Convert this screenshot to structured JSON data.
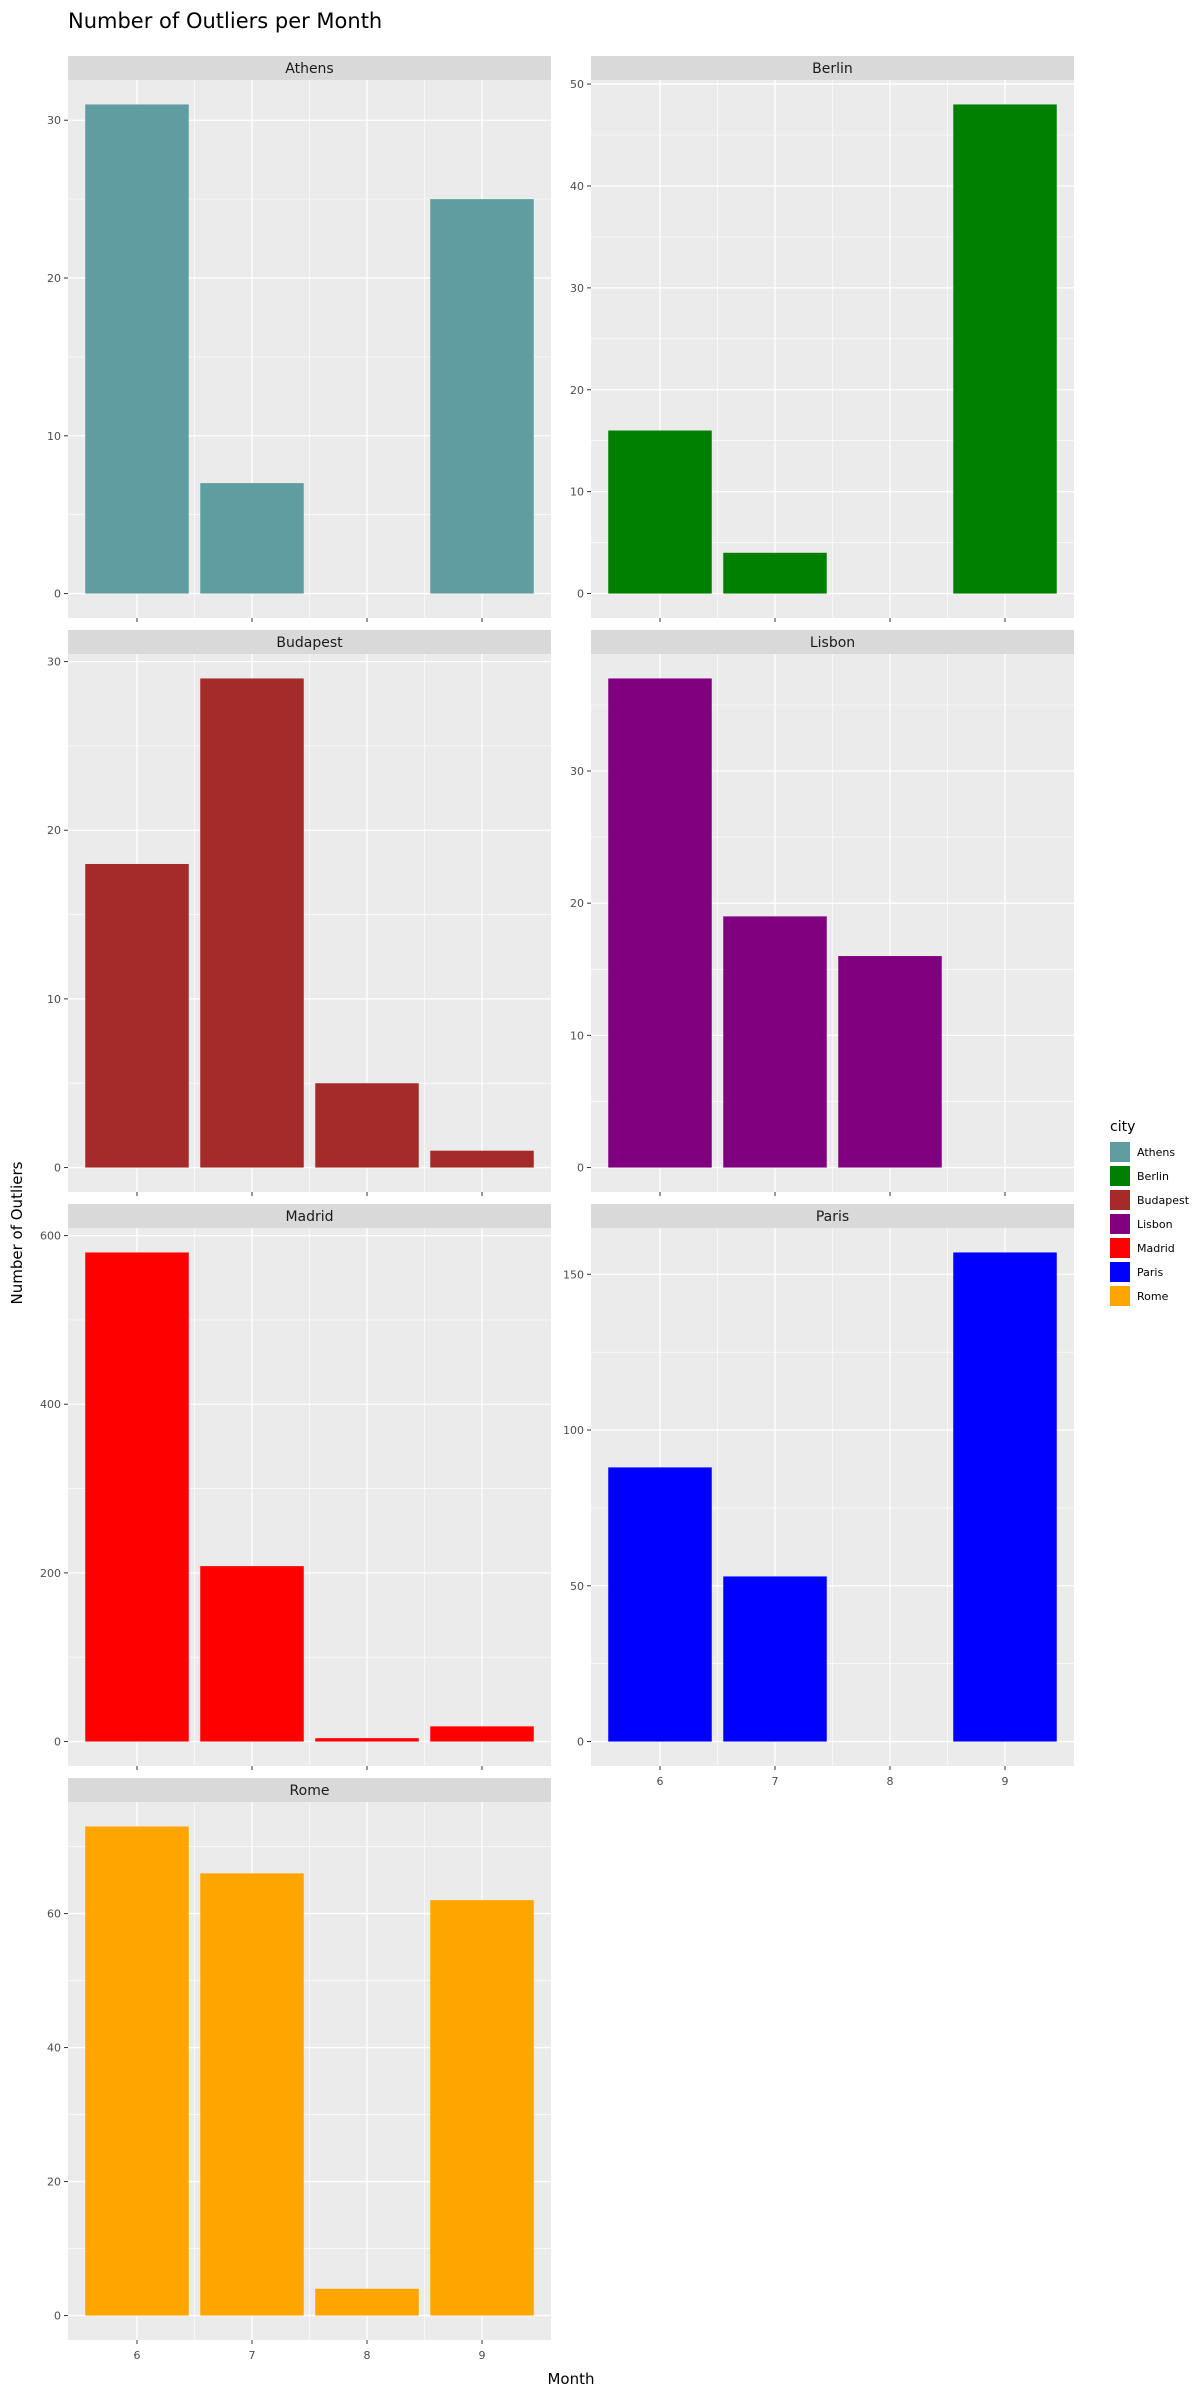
{
  "chart_data": {
    "type": "bar",
    "title": "Number of Outliers per Month",
    "xlabel": "Month",
    "ylabel": "Number of Outliers",
    "categories": [
      "6",
      "7",
      "8",
      "9"
    ],
    "grid": true,
    "facet_layout": "2 columns",
    "legend": {
      "title": "city",
      "placement": "right",
      "entries": [
        {
          "name": "Athens",
          "color": "#5F9EA0"
        },
        {
          "name": "Berlin",
          "color": "#008000"
        },
        {
          "name": "Budapest",
          "color": "#A52A2A"
        },
        {
          "name": "Lisbon",
          "color": "#800080"
        },
        {
          "name": "Madrid",
          "color": "#FF0000"
        },
        {
          "name": "Paris",
          "color": "#0000FF"
        },
        {
          "name": "Rome",
          "color": "#FFA500"
        }
      ]
    },
    "panels": [
      {
        "name": "Athens",
        "color": "#5F9EA0",
        "values": [
          31,
          7,
          null,
          25
        ],
        "ylim": [
          -1.55,
          32.55
        ],
        "yticks": [
          0,
          10,
          20,
          30
        ]
      },
      {
        "name": "Berlin",
        "color": "#008000",
        "values": [
          16,
          4,
          null,
          48
        ],
        "ylim": [
          -2.4,
          50.4
        ],
        "yticks": [
          0,
          10,
          20,
          30,
          40,
          50
        ]
      },
      {
        "name": "Budapest",
        "color": "#A52A2A",
        "values": [
          18,
          29,
          5,
          1
        ],
        "ylim": [
          -1.45,
          30.45
        ],
        "yticks": [
          0,
          10,
          20,
          30
        ]
      },
      {
        "name": "Lisbon",
        "color": "#800080",
        "values": [
          37,
          19,
          16,
          null
        ],
        "ylim": [
          -1.85,
          38.85
        ],
        "yticks": [
          0,
          10,
          20,
          30
        ]
      },
      {
        "name": "Madrid",
        "color": "#FF0000",
        "values": [
          580,
          208,
          4,
          18
        ],
        "ylim": [
          -29,
          609
        ],
        "yticks": [
          0,
          200,
          400,
          600
        ]
      },
      {
        "name": "Paris",
        "color": "#0000FF",
        "values": [
          88,
          53,
          null,
          157
        ],
        "ylim": [
          -7.85,
          164.85
        ],
        "yticks": [
          0,
          50,
          100,
          150
        ]
      },
      {
        "name": "Rome",
        "color": "#FFA500",
        "values": [
          73,
          66,
          4,
          62
        ],
        "ylim": [
          -3.65,
          76.65
        ],
        "yticks": [
          0,
          20,
          40,
          60
        ]
      }
    ]
  }
}
